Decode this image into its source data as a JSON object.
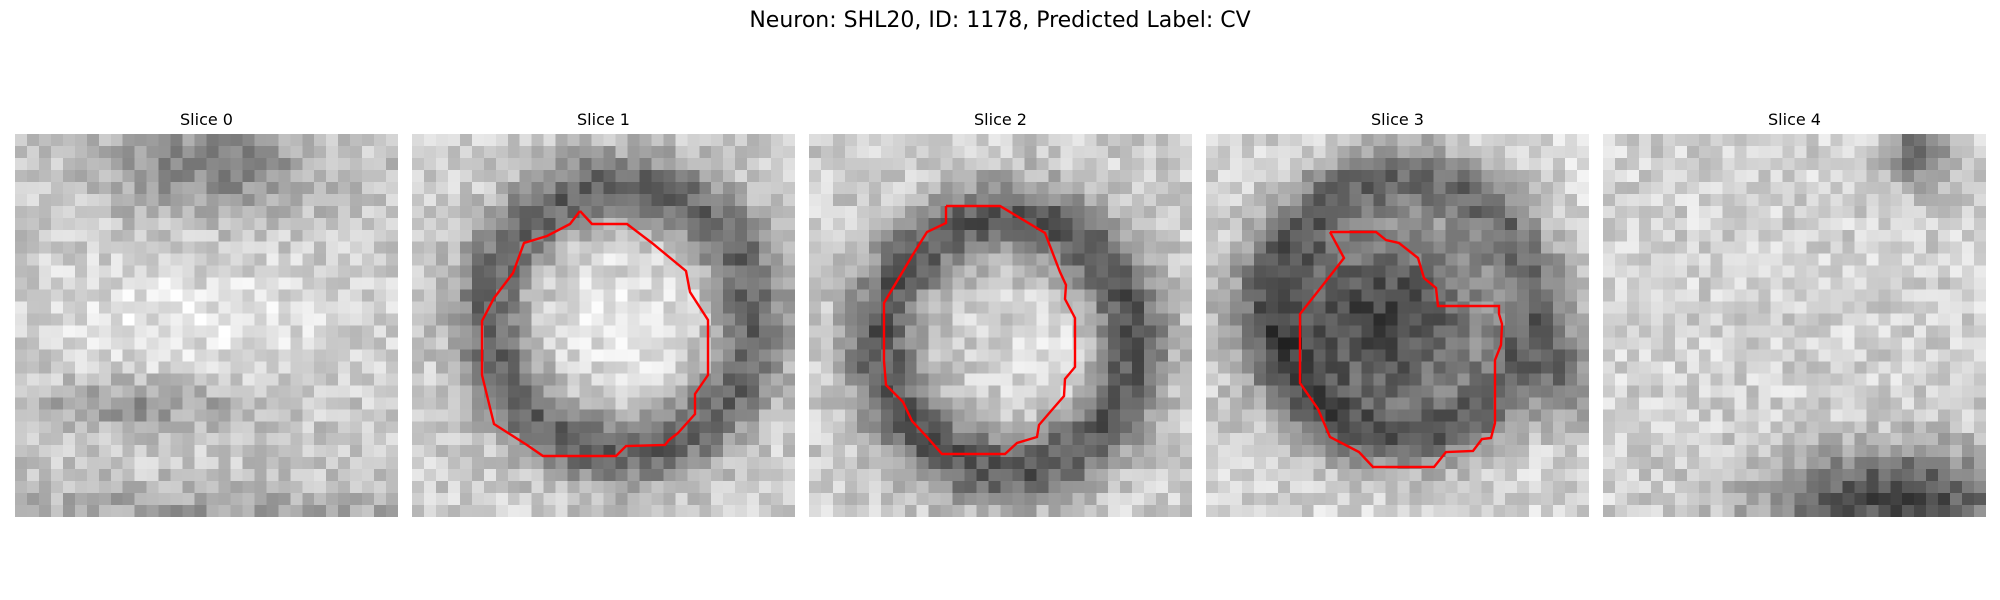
{
  "figure": {
    "title": "Neuron: SHL20, ID: 1178, Predicted Label: CV"
  },
  "overlay_color": "#ff0000",
  "colormap": "gray",
  "slices": [
    {
      "label": "Slice 0",
      "has_contour": false
    },
    {
      "label": "Slice 1",
      "has_contour": true
    },
    {
      "label": "Slice 2",
      "has_contour": true
    },
    {
      "label": "Slice 3",
      "has_contour": true
    },
    {
      "label": "Slice 4",
      "has_contour": false
    }
  ]
}
